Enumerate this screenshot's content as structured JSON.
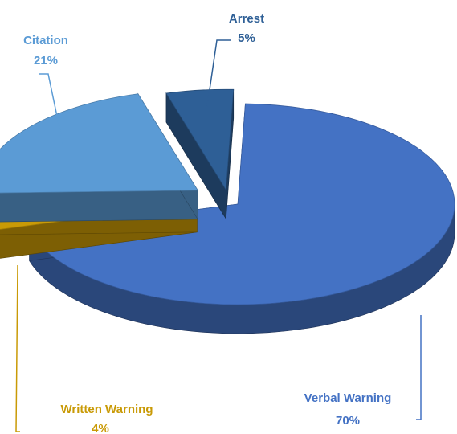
{
  "chart_data": {
    "type": "pie",
    "style": "3d-exploded",
    "title": "",
    "slices": [
      {
        "name": "Verbal Warning",
        "value": 70,
        "label_value": "70%",
        "color": "#4472c4"
      },
      {
        "name": "Written Warning",
        "value": 4,
        "label_value": "4%",
        "color": "#c99a06"
      },
      {
        "name": "Citation",
        "value": 21,
        "label_value": "21%",
        "color": "#5b9bd5"
      },
      {
        "name": "Arrest",
        "value": 5,
        "label_value": "5%",
        "color": "#2e5f96"
      }
    ]
  }
}
